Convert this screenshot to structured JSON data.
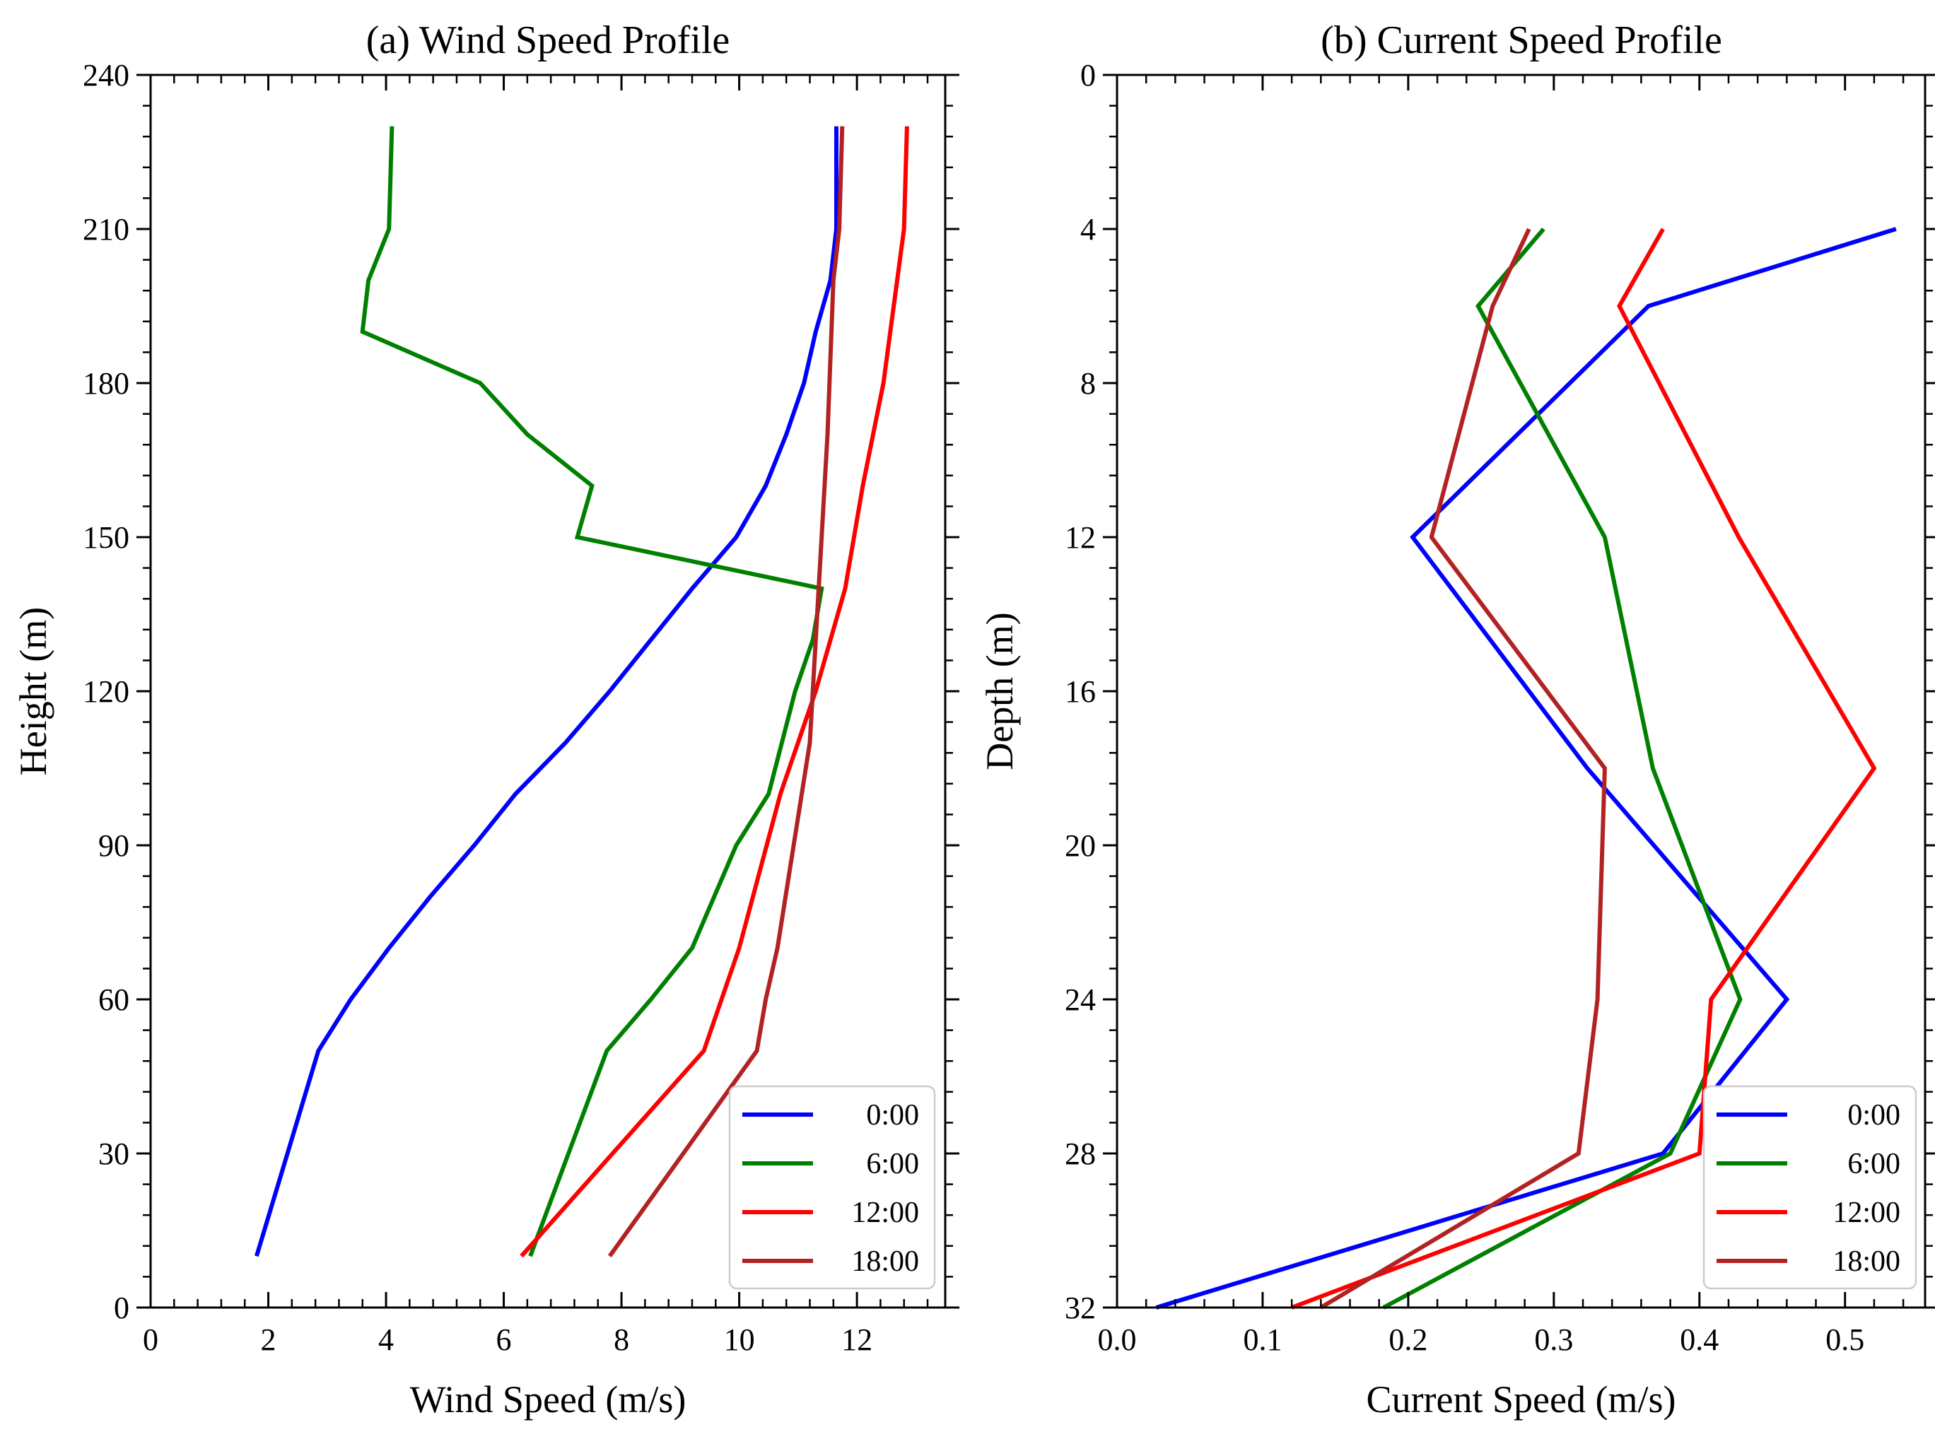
{
  "chart_data": [
    {
      "type": "line",
      "title": "(a) Wind Speed Profile",
      "xlabel": "Wind Speed (m/s)",
      "ylabel": "Height (m)",
      "xlim": [
        0,
        13.5
      ],
      "ylim": [
        0,
        240
      ],
      "xticks": [
        0,
        2,
        4,
        6,
        8,
        10,
        12
      ],
      "xtick_labels": [
        "0",
        "2",
        "4",
        "6",
        "8",
        "10",
        "12"
      ],
      "yticks": [
        0,
        30,
        60,
        90,
        120,
        150,
        180,
        210,
        240
      ],
      "ytick_labels": [
        "0",
        "30",
        "60",
        "90",
        "120",
        "150",
        "180",
        "210",
        "240"
      ],
      "y_inverted": false,
      "legend_position": "bottom-right",
      "series": [
        {
          "name": "0:00",
          "color": "#0000ff",
          "x": [
            1.8,
            2.85,
            3.4,
            4.05,
            4.75,
            5.5,
            6.2,
            7.05,
            7.8,
            8.5,
            9.2,
            9.95,
            10.45,
            10.8,
            11.1,
            11.3,
            11.55,
            11.65,
            11.65
          ],
          "y": [
            10,
            50,
            60,
            70,
            80,
            90,
            100,
            110,
            120,
            130,
            140,
            150,
            160,
            170,
            180,
            190,
            200,
            210,
            230
          ]
        },
        {
          "name": "6:00",
          "color": "#008000",
          "x": [
            6.45,
            7.1,
            7.75,
            8.5,
            9.2,
            9.95,
            10.5,
            10.95,
            11.25,
            11.4,
            7.25,
            7.5,
            6.4,
            5.6,
            3.6,
            3.7,
            4.05,
            4.1
          ],
          "y": [
            10,
            30,
            50,
            60,
            70,
            90,
            100,
            120,
            130,
            140,
            150,
            160,
            170,
            180,
            190,
            200,
            210,
            230
          ]
        },
        {
          "name": "12:00",
          "color": "#ff0000",
          "x": [
            6.3,
            9.4,
            10.0,
            10.7,
            11.3,
            11.8,
            12.1,
            12.45,
            12.8,
            12.85
          ],
          "y": [
            10,
            50,
            70,
            100,
            120,
            140,
            160,
            180,
            210,
            230
          ]
        },
        {
          "name": "18:00",
          "color": "#b22222",
          "x": [
            7.8,
            10.3,
            10.45,
            10.65,
            11.2,
            11.35,
            11.5,
            11.6,
            11.7,
            11.75
          ],
          "y": [
            10,
            50,
            60,
            70,
            110,
            140,
            170,
            200,
            210,
            230
          ]
        }
      ]
    },
    {
      "type": "line",
      "title": "(b) Current Speed Profile",
      "xlabel": "Current Speed (m/s)",
      "ylabel": "Depth (m)",
      "xlim": [
        0.0,
        0.555
      ],
      "ylim": [
        0,
        32
      ],
      "xticks": [
        0.0,
        0.1,
        0.2,
        0.3,
        0.4,
        0.5
      ],
      "xtick_labels": [
        "0.0",
        "0.1",
        "0.2",
        "0.3",
        "0.4",
        "0.5"
      ],
      "yticks": [
        0,
        4,
        8,
        12,
        16,
        20,
        24,
        28,
        32
      ],
      "ytick_labels": [
        "0",
        "4",
        "8",
        "12",
        "16",
        "20",
        "24",
        "28",
        "32"
      ],
      "y_inverted": true,
      "legend_position": "bottom-right",
      "series": [
        {
          "name": "0:00",
          "color": "#0000ff",
          "x": [
            0.535,
            0.365,
            0.203,
            0.323,
            0.46,
            0.375,
            0.027
          ],
          "y": [
            4,
            6,
            12,
            18,
            24,
            28,
            32
          ]
        },
        {
          "name": "6:00",
          "color": "#008000",
          "x": [
            0.293,
            0.248,
            0.335,
            0.368,
            0.428,
            0.38,
            0.183
          ],
          "y": [
            4,
            6,
            12,
            18,
            24,
            28,
            32
          ]
        },
        {
          "name": "12:00",
          "color": "#ff0000",
          "x": [
            0.375,
            0.345,
            0.427,
            0.52,
            0.408,
            0.4,
            0.12
          ],
          "y": [
            4,
            6,
            12,
            18,
            24,
            28,
            32
          ]
        },
        {
          "name": "18:00",
          "color": "#b22222",
          "x": [
            0.283,
            0.258,
            0.216,
            0.335,
            0.33,
            0.317,
            0.14
          ],
          "y": [
            4,
            6,
            12,
            18,
            24,
            28,
            32
          ]
        }
      ]
    }
  ]
}
